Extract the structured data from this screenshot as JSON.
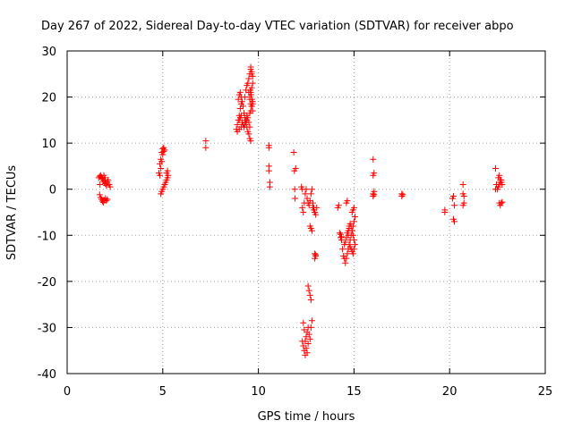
{
  "chart_data": {
    "type": "scatter",
    "title": "Day 267 of 2022, Sidereal Day-to-day VTEC variation (SDTVAR) for receiver abpo",
    "xlabel": "GPS time / hours",
    "ylabel": "SDTVAR / TECUs",
    "xlim": [
      0,
      25
    ],
    "ylim": [
      -40,
      30
    ],
    "grid": true,
    "marker": "+",
    "marker_color": "#ff0000",
    "x_ticks": [
      0,
      5,
      10,
      15,
      20,
      25
    ],
    "x_tick_labels": [
      "0",
      "5",
      "10",
      "15",
      "20",
      "25"
    ],
    "y_ticks": [
      -40,
      -30,
      -20,
      -10,
      0,
      10,
      20,
      30
    ],
    "y_tick_labels": [
      "-40",
      "-30",
      "-20",
      "-10",
      "0",
      "10",
      "20",
      "30"
    ],
    "series": [
      {
        "name": "SDTVAR",
        "x": [
          1.65,
          1.7,
          1.75,
          1.8,
          1.85,
          1.9,
          1.95,
          2.0,
          2.05,
          2.1,
          2.15,
          2.2,
          2.25,
          1.7,
          1.75,
          1.8,
          1.85,
          1.9,
          1.95,
          2.0,
          2.05,
          2.1,
          1.72,
          1.85,
          1.92,
          1.98,
          4.8,
          4.85,
          4.9,
          4.95,
          5.0,
          5.05,
          5.1,
          4.85,
          4.9,
          4.95,
          5.0,
          5.05,
          4.9,
          4.95,
          5.0,
          5.05,
          5.1,
          5.15,
          5.2,
          5.25,
          5.2,
          5.25,
          5.28,
          7.25,
          7.25,
          8.85,
          8.9,
          8.95,
          9.0,
          9.05,
          9.1,
          8.95,
          9.0,
          9.05,
          9.1,
          9.15,
          9.2,
          9.25,
          9.3,
          9.35,
          9.4,
          9.45,
          9.5,
          9.55,
          9.6,
          9.0,
          9.05,
          9.1,
          9.15,
          9.2,
          9.25,
          9.3,
          9.35,
          9.4,
          9.45,
          9.5,
          9.55,
          9.3,
          9.35,
          9.4,
          9.45,
          9.5,
          9.55,
          9.6,
          9.65,
          9.7,
          9.5,
          9.55,
          9.6,
          9.65,
          9.7,
          9.55,
          9.6,
          9.65,
          9.7,
          9.55,
          9.6,
          9.65,
          9.7,
          9.58,
          9.62,
          9.66,
          9.7,
          9.6,
          9.65,
          8.9,
          9.0,
          9.1,
          9.2,
          9.3,
          9.4,
          10.55,
          10.55,
          10.55,
          10.55,
          10.6,
          10.6,
          11.85,
          11.88,
          11.9,
          11.92,
          11.95,
          12.25,
          12.3,
          12.3,
          12.35,
          12.4,
          12.45,
          12.5,
          12.55,
          12.6,
          12.65,
          12.7,
          12.75,
          12.8,
          12.85,
          12.9,
          12.95,
          12.6,
          12.65,
          12.7,
          12.75,
          12.7,
          12.75,
          12.8,
          12.85,
          12.9,
          12.95,
          13.0,
          13.05,
          12.95,
          13.0,
          12.95,
          13.0,
          12.3,
          12.35,
          12.4,
          12.45,
          12.5,
          12.55,
          12.6,
          12.35,
          12.4,
          12.45,
          12.5,
          12.55,
          12.6,
          12.65,
          12.7,
          12.75,
          12.8,
          14.15,
          14.2,
          14.25,
          14.3,
          14.35,
          14.4,
          14.45,
          14.5,
          14.55,
          14.6,
          14.65,
          14.7,
          14.75,
          14.8,
          14.85,
          14.9,
          14.95,
          15.0,
          15.05,
          14.5,
          14.55,
          14.6,
          14.65,
          14.7,
          14.75,
          14.8,
          14.85,
          14.9,
          14.95,
          15.0,
          14.8,
          14.85,
          14.9,
          14.95,
          15.0,
          15.05,
          14.9,
          14.95,
          15.0,
          14.3,
          14.35,
          14.6,
          14.65,
          14.7,
          14.75,
          16.0,
          16.0,
          16.0,
          16.0,
          16.05,
          16.05,
          16.05,
          17.5,
          17.5,
          17.55,
          19.75,
          19.75,
          20.15,
          20.2,
          20.2,
          20.25,
          20.25,
          20.7,
          20.7,
          20.75,
          20.75,
          20.7,
          22.4,
          22.45,
          22.5,
          22.55,
          22.6,
          22.65,
          22.7,
          22.75,
          22.6,
          22.65,
          22.7,
          22.75,
          22.55,
          22.6,
          22.65,
          22.7,
          22.4
        ],
        "y": [
          2.5,
          2.8,
          3.0,
          2.6,
          2.2,
          1.8,
          1.5,
          1.2,
          0.8,
          1.6,
          2.0,
          1.0,
          0.5,
          -1.2,
          -1.8,
          -2.2,
          -2.6,
          -2.9,
          -2.4,
          -2.0,
          -2.5,
          -2.2,
          1.0,
          2.3,
          3.0,
          2.5,
          3.5,
          5.5,
          6.5,
          8.0,
          8.8,
          9.0,
          8.5,
          3.0,
          4.5,
          6.0,
          7.5,
          8.2,
          -1.0,
          -0.5,
          0.0,
          0.5,
          1.0,
          1.5,
          2.0,
          2.5,
          3.5,
          4.0,
          3.0,
          10.5,
          9.0,
          13.0,
          14.0,
          15.0,
          16.0,
          17.5,
          18.5,
          19.5,
          20.5,
          21.0,
          20.0,
          19.0,
          18.0,
          16.5,
          15.5,
          14.5,
          13.5,
          12.5,
          12.0,
          11.0,
          10.5,
          15.0,
          15.5,
          16.0,
          14.5,
          14.0,
          13.5,
          14.0,
          15.0,
          16.0,
          15.5,
          14.5,
          13.5,
          20.0,
          21.5,
          22.5,
          23.0,
          21.0,
          19.5,
          18.5,
          18.0,
          17.0,
          24.0,
          25.0,
          26.0,
          25.5,
          24.5,
          16.5,
          17.0,
          18.0,
          19.0,
          20.0,
          21.0,
          22.0,
          23.0,
          21.5,
          20.5,
          19.5,
          18.5,
          26.5,
          25.0,
          12.5,
          13.0,
          13.5,
          14.0,
          14.5,
          15.0,
          9.5,
          9.0,
          5.0,
          4.0,
          1.5,
          0.5,
          8.0,
          4.0,
          0.0,
          -2.0,
          4.5,
          0.5,
          0.0,
          -4.0,
          -5.0,
          -3.0,
          -1.0,
          0.0,
          -2.0,
          -3.0,
          -3.5,
          -2.5,
          -1.0,
          0.0,
          -3.0,
          -4.0,
          -5.0,
          -21.0,
          -22.0,
          -23.0,
          -24.0,
          -8.0,
          -8.5,
          -9.0,
          -4.0,
          -4.5,
          -5.0,
          -5.5,
          -4.0,
          -14.0,
          -14.5,
          -15.0,
          -14.2,
          -33.0,
          -34.0,
          -35.0,
          -36.0,
          -32.0,
          -31.0,
          -30.0,
          -29.0,
          -30.5,
          -33.0,
          -34.5,
          -35.5,
          -33.5,
          -31.5,
          -32.5,
          -30.0,
          -28.5,
          -4.0,
          -3.5,
          -9.5,
          -10.5,
          -11.0,
          -13.0,
          -14.5,
          -15.0,
          -16.0,
          -15.0,
          -14.0,
          -13.0,
          -12.0,
          -11.0,
          -10.0,
          -9.0,
          -8.0,
          -7.0,
          -6.0,
          -12.0,
          -11.5,
          -10.5,
          -9.5,
          -10.0,
          -8.5,
          -7.5,
          -8.0,
          -9.0,
          -10.0,
          -11.0,
          -12.5,
          -13.0,
          -13.5,
          -14.0,
          -13.0,
          -12.0,
          -5.0,
          -4.5,
          -4.0,
          -9.8,
          -10.3,
          -3.0,
          -2.5,
          -9.0,
          -8.0,
          6.5,
          3.0,
          -1.0,
          -1.5,
          3.5,
          -0.5,
          -1.2,
          -1.0,
          -1.5,
          -1.2,
          -4.5,
          -5.0,
          -2.0,
          -1.5,
          -6.5,
          -7.0,
          -3.5,
          1.0,
          -1.0,
          -1.5,
          -3.0,
          -3.5,
          4.5,
          1.0,
          0.0,
          2.5,
          3.0,
          2.0,
          1.5,
          1.0,
          -3.0,
          -3.5,
          -3.0,
          -2.8,
          0.5,
          1.0,
          1.5,
          2.0,
          0.0
        ]
      }
    ]
  }
}
